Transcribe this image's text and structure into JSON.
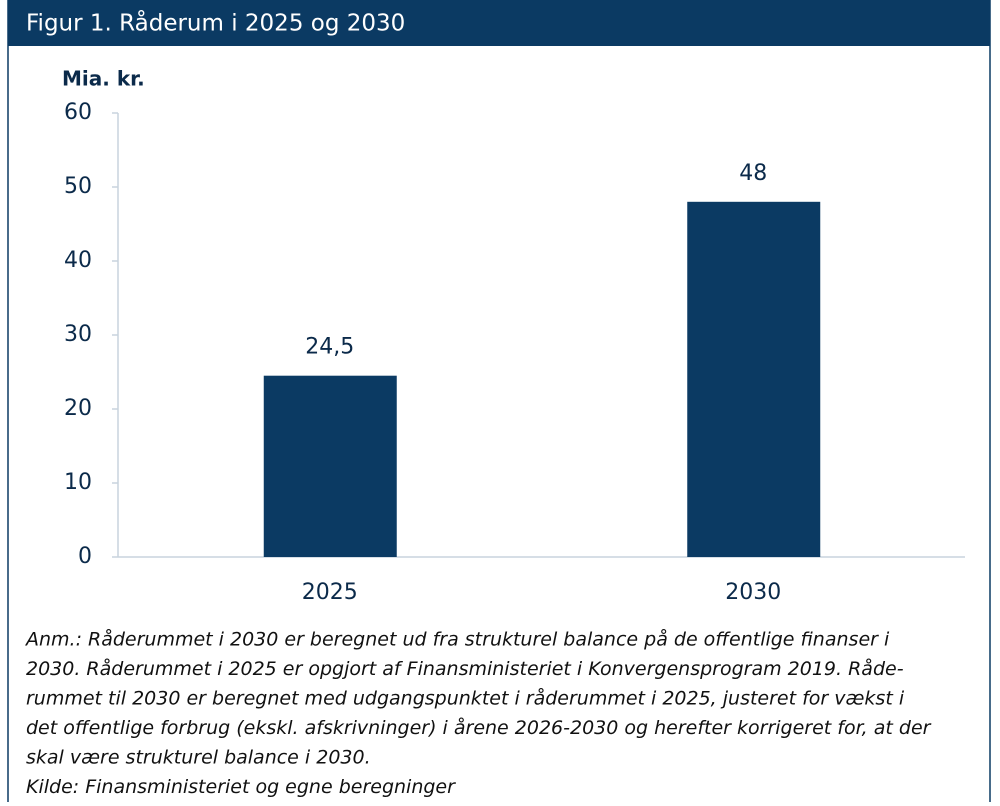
{
  "chart_data": {
    "type": "bar",
    "title": "Figur 1. Råderum i 2025 og 2030",
    "y_label": "Mia. kr.",
    "categories": [
      "2025",
      "2030"
    ],
    "values": [
      24.5,
      48
    ],
    "value_labels": [
      "24,5",
      "48"
    ],
    "color": "#0b3a63",
    "ylim": [
      0,
      60
    ],
    "yticks": [
      0,
      10,
      20,
      30,
      40,
      50,
      60
    ],
    "note_lines": [
      "Anm.: Råderummet i 2030 er beregnet ud fra strukturel balance på de offentlige finanser i",
      "2030. Råderummet i 2025 er opgjort af Finansministeriet i Konvergensprogram 2019. Råde-",
      "rummet til 2030 er beregnet med udgangspunktet i råderummet i 2025, justeret for vækst i",
      "det offentlige forbrug (ekskl. afskrivninger) i årene 2026-2030 og herefter korrigeret for, at der",
      "skal være strukturel balance i 2030.",
      "Kilde: Finansministeriet og egne beregninger"
    ]
  }
}
